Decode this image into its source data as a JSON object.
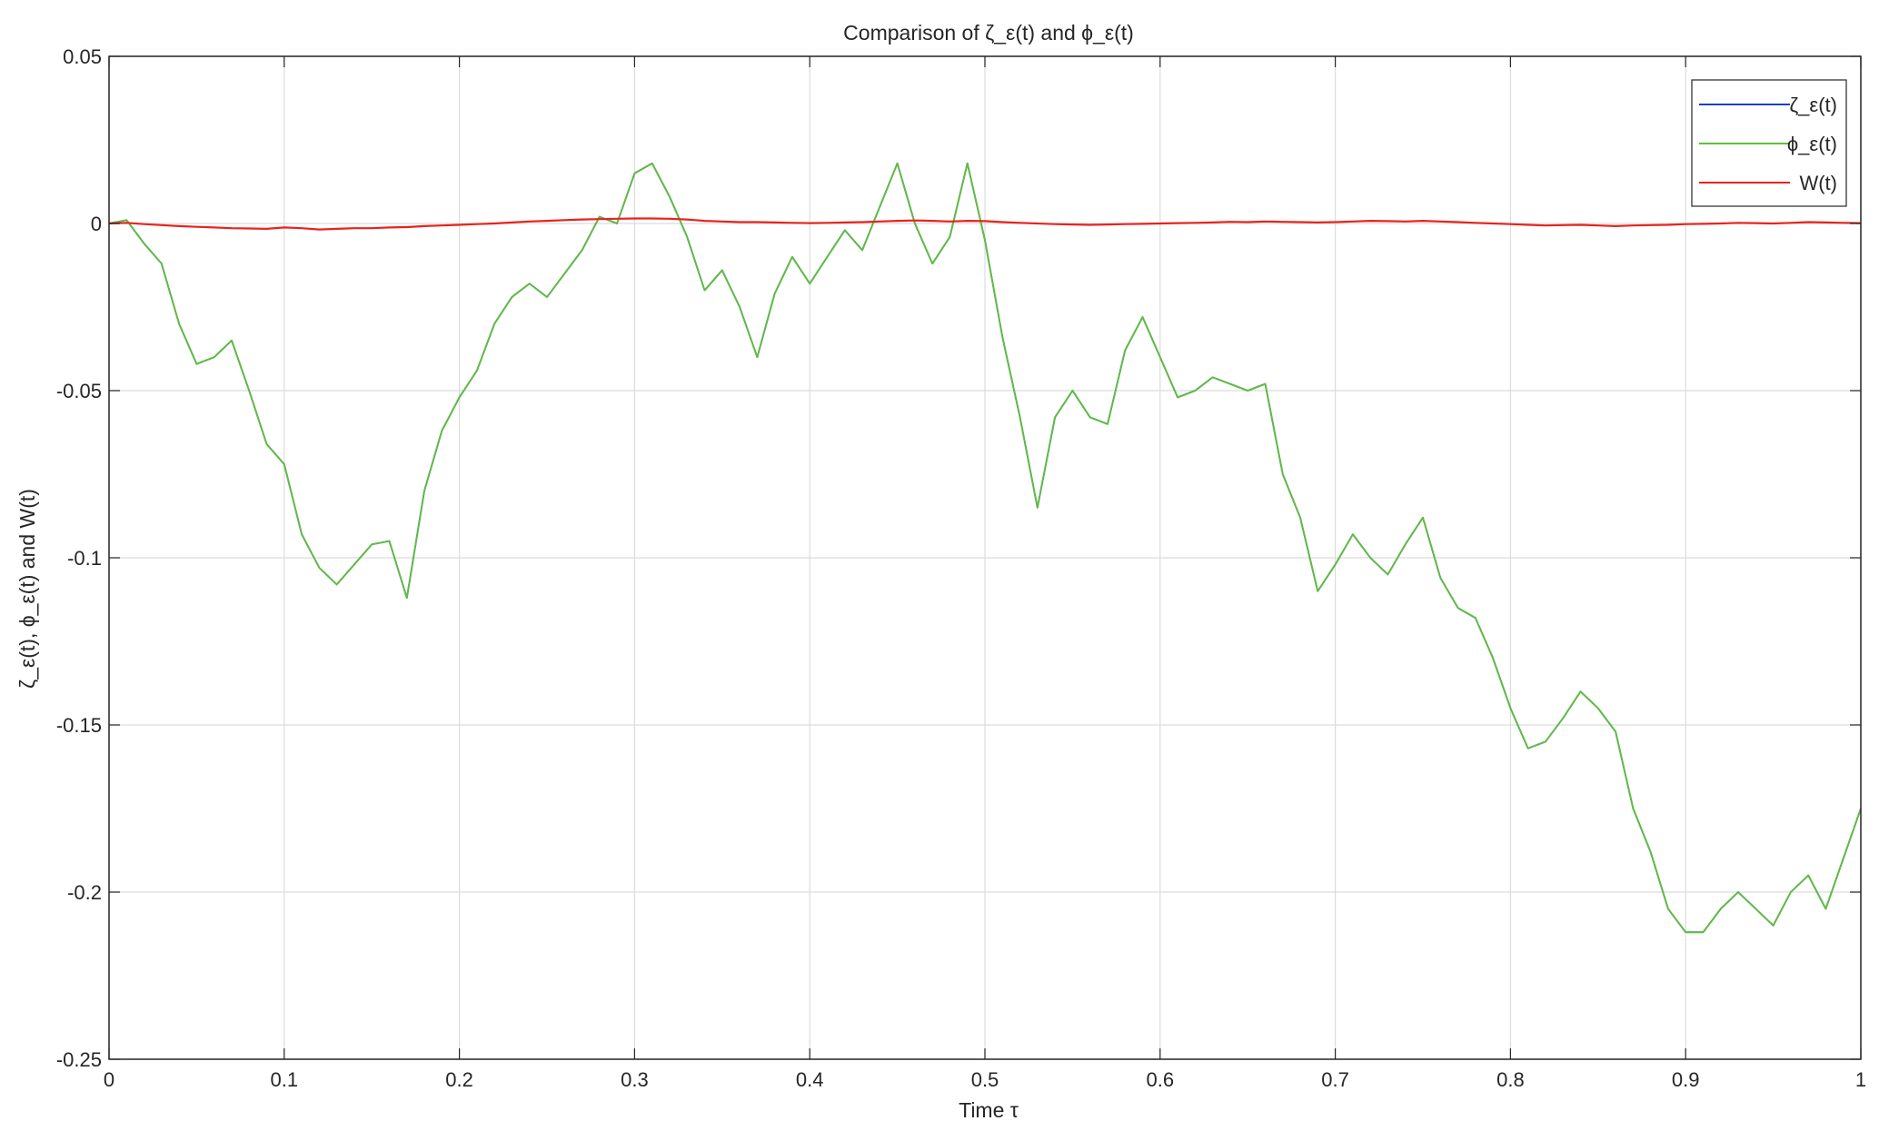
{
  "chart_data": {
    "type": "line",
    "title": "Comparison of ζ_ε(t) and ϕ_ε(t)",
    "xlabel": "Time τ",
    "ylabel": "ζ_ε(t), ϕ_ε(t) and W(t)",
    "xlim": [
      0,
      1
    ],
    "ylim": [
      -0.25,
      0.05
    ],
    "grid": true,
    "legend_position": "top-right",
    "x_ticks": [
      0,
      0.1,
      0.2,
      0.3,
      0.4,
      0.5,
      0.6,
      0.7,
      0.8,
      0.9,
      1
    ],
    "x_tick_labels": [
      "0",
      "0.1",
      "0.2",
      "0.3",
      "0.4",
      "0.5",
      "0.6",
      "0.7",
      "0.8",
      "0.9",
      "1"
    ],
    "y_ticks": [
      0.05,
      0,
      -0.05,
      -0.1,
      -0.15,
      -0.2,
      -0.25
    ],
    "y_tick_labels": [
      "0.05",
      "0",
      "-0.05",
      "-0.1",
      "-0.15",
      "-0.2",
      "-0.25"
    ],
    "x": [
      0,
      0.01,
      0.02,
      0.03,
      0.04,
      0.05,
      0.06,
      0.07,
      0.08,
      0.09,
      0.1,
      0.11,
      0.12,
      0.13,
      0.14,
      0.15,
      0.16,
      0.17,
      0.18,
      0.19,
      0.2,
      0.21,
      0.22,
      0.23,
      0.24,
      0.25,
      0.26,
      0.27,
      0.28,
      0.29,
      0.3,
      0.31,
      0.32,
      0.33,
      0.34,
      0.35,
      0.36,
      0.37,
      0.38,
      0.39,
      0.4,
      0.41,
      0.42,
      0.43,
      0.44,
      0.45,
      0.46,
      0.47,
      0.48,
      0.49,
      0.5,
      0.51,
      0.52,
      0.53,
      0.54,
      0.55,
      0.56,
      0.57,
      0.58,
      0.59,
      0.6,
      0.61,
      0.62,
      0.63,
      0.64,
      0.65,
      0.66,
      0.67,
      0.68,
      0.69,
      0.7,
      0.71,
      0.72,
      0.73,
      0.74,
      0.75,
      0.76,
      0.77,
      0.78,
      0.79,
      0.8,
      0.81,
      0.82,
      0.83,
      0.84,
      0.85,
      0.86,
      0.87,
      0.88,
      0.89,
      0.9,
      0.91,
      0.92,
      0.93,
      0.94,
      0.95,
      0.96,
      0.97,
      0.98,
      0.99,
      1.0
    ],
    "series": [
      {
        "name": "ζ_ε(t)",
        "color": "#1f3fbf",
        "values": [
          0.0,
          0.001,
          -0.006,
          -0.012,
          -0.03,
          -0.042,
          -0.04,
          -0.035,
          -0.05,
          -0.066,
          -0.072,
          -0.093,
          -0.103,
          -0.108,
          -0.102,
          -0.096,
          -0.095,
          -0.112,
          -0.08,
          -0.062,
          -0.052,
          -0.044,
          -0.03,
          -0.022,
          -0.018,
          -0.022,
          -0.015,
          -0.008,
          0.002,
          0.0,
          0.015,
          0.018,
          0.008,
          -0.004,
          -0.02,
          -0.014,
          -0.025,
          -0.04,
          -0.021,
          -0.01,
          -0.018,
          -0.01,
          -0.002,
          -0.008,
          0.005,
          0.018,
          0.0,
          -0.012,
          -0.004,
          0.018,
          -0.005,
          -0.034,
          -0.058,
          -0.085,
          -0.058,
          -0.05,
          -0.058,
          -0.06,
          -0.038,
          -0.028,
          -0.04,
          -0.052,
          -0.05,
          -0.046,
          -0.048,
          -0.05,
          -0.048,
          -0.075,
          -0.088,
          -0.11,
          -0.102,
          -0.093,
          -0.1,
          -0.105,
          -0.096,
          -0.088,
          -0.106,
          -0.115,
          -0.118,
          -0.13,
          -0.145,
          -0.157,
          -0.155,
          -0.148,
          -0.14,
          -0.145,
          -0.152,
          -0.175,
          -0.188,
          -0.205,
          -0.212,
          -0.212,
          -0.205,
          -0.2,
          -0.205,
          -0.21,
          -0.2,
          -0.195,
          -0.205,
          -0.19,
          -0.175
        ]
      },
      {
        "name": "ϕ_ε(t)",
        "color": "#5fbf3a",
        "values": [
          0.0,
          0.001,
          -0.006,
          -0.012,
          -0.03,
          -0.042,
          -0.04,
          -0.035,
          -0.05,
          -0.066,
          -0.072,
          -0.093,
          -0.103,
          -0.108,
          -0.102,
          -0.096,
          -0.095,
          -0.112,
          -0.08,
          -0.062,
          -0.052,
          -0.044,
          -0.03,
          -0.022,
          -0.018,
          -0.022,
          -0.015,
          -0.008,
          0.002,
          0.0,
          0.015,
          0.018,
          0.008,
          -0.004,
          -0.02,
          -0.014,
          -0.025,
          -0.04,
          -0.021,
          -0.01,
          -0.018,
          -0.01,
          -0.002,
          -0.008,
          0.005,
          0.018,
          0.0,
          -0.012,
          -0.004,
          0.018,
          -0.005,
          -0.034,
          -0.058,
          -0.085,
          -0.058,
          -0.05,
          -0.058,
          -0.06,
          -0.038,
          -0.028,
          -0.04,
          -0.052,
          -0.05,
          -0.046,
          -0.048,
          -0.05,
          -0.048,
          -0.075,
          -0.088,
          -0.11,
          -0.102,
          -0.093,
          -0.1,
          -0.105,
          -0.096,
          -0.088,
          -0.106,
          -0.115,
          -0.118,
          -0.13,
          -0.145,
          -0.157,
          -0.155,
          -0.148,
          -0.14,
          -0.145,
          -0.152,
          -0.175,
          -0.188,
          -0.205,
          -0.212,
          -0.212,
          -0.205,
          -0.2,
          -0.205,
          -0.21,
          -0.2,
          -0.195,
          -0.205,
          -0.19,
          -0.175
        ]
      },
      {
        "name": "W(t)",
        "color": "#e8231c",
        "values": [
          0.0,
          0.0002,
          -0.0002,
          -0.0005,
          -0.0008,
          -0.001,
          -0.0012,
          -0.0014,
          -0.0015,
          -0.0016,
          -0.0012,
          -0.0014,
          -0.0018,
          -0.0016,
          -0.0014,
          -0.0014,
          -0.0012,
          -0.0011,
          -0.0008,
          -0.0006,
          -0.0004,
          -0.0002,
          0.0,
          0.0003,
          0.0006,
          0.0008,
          0.001,
          0.0012,
          0.0013,
          0.0014,
          0.0015,
          0.0015,
          0.0014,
          0.0012,
          0.0008,
          0.0006,
          0.0004,
          0.0004,
          0.0003,
          0.0002,
          0.0001,
          0.0002,
          0.0003,
          0.0004,
          0.0006,
          0.0008,
          0.0009,
          0.0008,
          0.0006,
          0.0008,
          0.0007,
          0.0004,
          0.0002,
          0.0,
          -0.0002,
          -0.0003,
          -0.0004,
          -0.0003,
          -0.0002,
          -0.0001,
          0.0,
          0.0001,
          0.0002,
          0.0003,
          0.0005,
          0.0004,
          0.0006,
          0.0005,
          0.0004,
          0.0003,
          0.0004,
          0.0006,
          0.0008,
          0.0007,
          0.0006,
          0.0008,
          0.0006,
          0.0004,
          0.0002,
          0.0,
          -0.0002,
          -0.0004,
          -0.0006,
          -0.0005,
          -0.0004,
          -0.0006,
          -0.0008,
          -0.0006,
          -0.0005,
          -0.0004,
          -0.0002,
          -0.0001,
          0.0,
          0.0002,
          0.0001,
          0.0,
          0.0002,
          0.0004,
          0.0003,
          0.0002,
          0.0001
        ]
      }
    ]
  }
}
